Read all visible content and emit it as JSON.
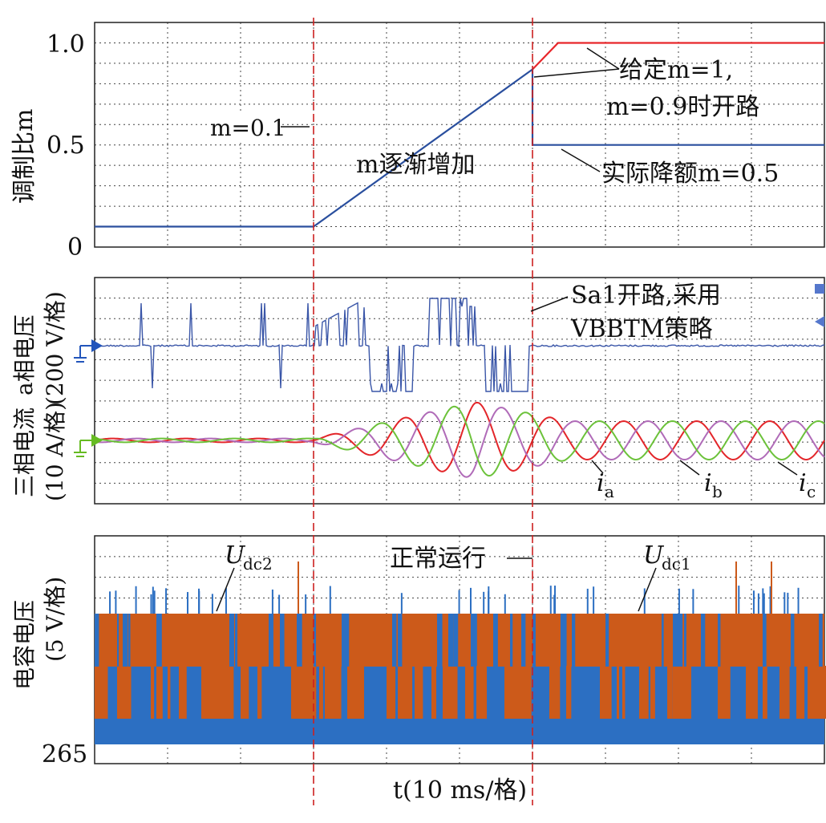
{
  "colors": {
    "modulation_given": "#e8262a",
    "modulation_actual": "#2a4f9e",
    "phase_voltage": "#3a56a8",
    "phase_voltage_ghost": "#c8c6de",
    "ia": "#e3262a",
    "ib": "#b06bb8",
    "ic": "#6cc23a",
    "udc1": "#2c6fc2",
    "udc2": "#cc5a1a",
    "event_line": "#cc2020",
    "grid": "#444444",
    "ground_marker_voltage": "#2255bb",
    "ground_marker_current": "#66bb22"
  },
  "chart_data": [
    {
      "type": "line",
      "name": "modulation_index",
      "ylabel": "调制比m",
      "ylim": [
        0,
        1.1
      ],
      "yticks": [
        "1.0",
        "0.5",
        "0"
      ],
      "ytick_values": [
        1.0,
        0.5,
        0
      ],
      "xlim": [
        0,
        10
      ],
      "series": [
        {
          "name": "given m",
          "x": [
            6,
            6.35,
            10
          ],
          "y": [
            0.87,
            1.0,
            1.0
          ]
        },
        {
          "name": "actual m",
          "x": [
            0,
            3,
            6,
            6,
            10
          ],
          "y": [
            0.1,
            0.1,
            0.87,
            0.5,
            0.5
          ]
        }
      ],
      "annotations": {
        "m01": "m=0.1",
        "ramp": "m逐渐增加",
        "given_line1": "给定m=1,",
        "given_line2": "m=0.9时开路",
        "derated": "实际降额m=0.5"
      }
    },
    {
      "type": "line",
      "name": "phase_voltage_and_currents",
      "ylabel_voltage_1": "a相电压",
      "ylabel_voltage_2": "(200 V/格)",
      "ylabel_current_1": "三相电流",
      "ylabel_current_2": "(10 A/格)",
      "xlim": [
        0,
        10
      ],
      "current_amplitude_A": [
        1,
        1,
        20,
        10
      ],
      "current_amplitude_t": [
        0,
        3,
        5.2,
        6.5
      ],
      "fault_note_line1": "Sa1开路,采用",
      "fault_note_line2": "VBBTM策略",
      "current_labels": {
        "ia": "a",
        "ib": "b",
        "ic": "c"
      }
    },
    {
      "type": "line",
      "name": "capacitor_voltage",
      "ylabel_1": "电容电压",
      "ylabel_2": "(5 V/格)",
      "yticks": [
        "265"
      ],
      "xlim": [
        0,
        10
      ],
      "xlabel": "t(10 ms/格)",
      "series_labels": {
        "udc2": "dc2",
        "udc1": "dc1"
      },
      "normal_note": "正常运行"
    }
  ],
  "event_times": [
    3,
    6
  ]
}
